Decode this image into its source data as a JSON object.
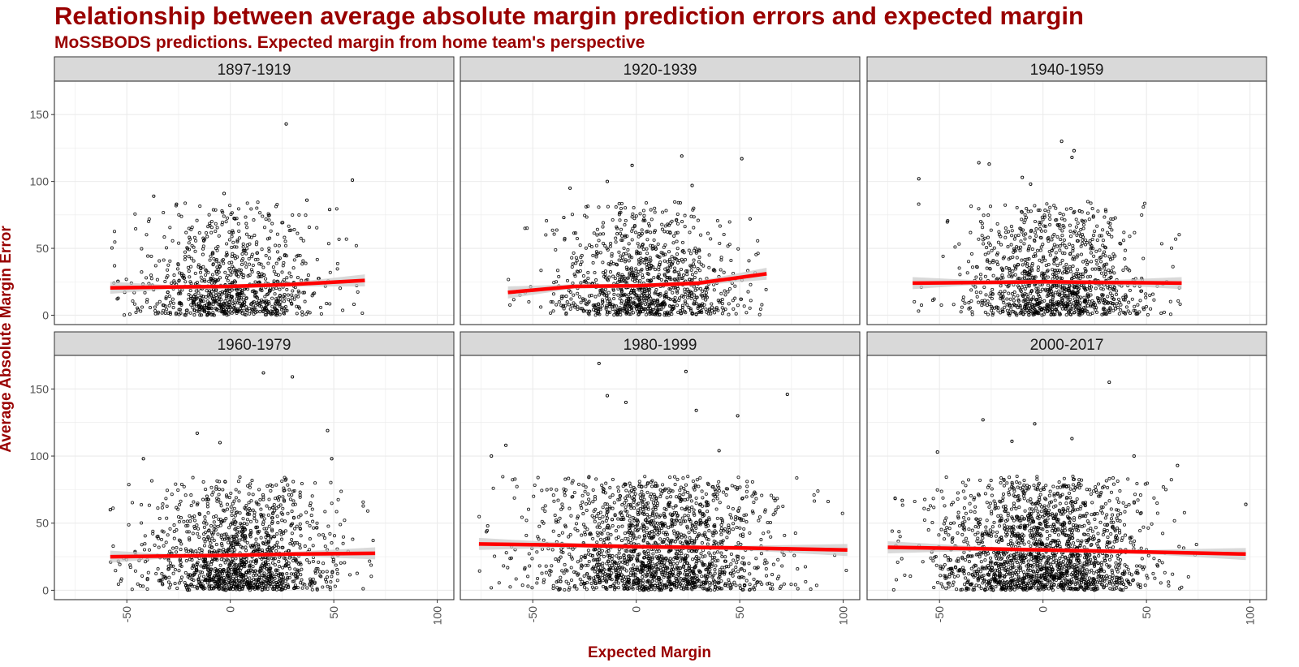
{
  "title": "Relationship between average absolute margin prediction errors and expected margin",
  "subtitle": "MoSSBODS predictions. Expected margin from home team's perspective",
  "colors": {
    "title": "#990000",
    "fit_line": "#ff0000",
    "ribbon": "#cccccc",
    "points": "#000000",
    "strip_bg": "#d9d9d9",
    "grid": "#ebebeb"
  },
  "chart_data": {
    "type": "scatter",
    "facet_layout": {
      "rows": 2,
      "cols": 3
    },
    "xlabel": "Expected Margin",
    "ylabel": "Average Absolute Margin Error",
    "xlim": [
      -85,
      108
    ],
    "ylim": [
      -7,
      175
    ],
    "x_ticks": [
      -50,
      0,
      50,
      100
    ],
    "y_ticks": [
      0,
      50,
      100,
      150
    ],
    "grid": true,
    "trend": "smoothed fit with confidence ribbon",
    "facets": [
      {
        "label": "1897-1919",
        "x_range": [
          -58,
          65
        ],
        "point_cloud": {
          "x_center": 0,
          "x_sd": 22,
          "y_median": 20,
          "n": 900
        },
        "outliers": [
          [
            27,
            143
          ],
          [
            59,
            101
          ],
          [
            -37,
            89
          ],
          [
            -3,
            91
          ],
          [
            -26,
            83
          ],
          [
            37,
            86
          ],
          [
            48,
            79
          ]
        ],
        "fit": [
          [
            -58,
            20.5
          ],
          [
            -30,
            21
          ],
          [
            0,
            21.5
          ],
          [
            30,
            23
          ],
          [
            65,
            26
          ]
        ]
      },
      {
        "label": "1920-1939",
        "x_range": [
          -62,
          63
        ],
        "point_cloud": {
          "x_center": 5,
          "x_sd": 22,
          "y_median": 21,
          "n": 1000
        },
        "outliers": [
          [
            22,
            119
          ],
          [
            51,
            117
          ],
          [
            -2,
            112
          ],
          [
            -14,
            100
          ],
          [
            27,
            97
          ],
          [
            -32,
            95
          ],
          [
            55,
            72
          ],
          [
            -35,
            73
          ]
        ],
        "fit": [
          [
            -62,
            17
          ],
          [
            -30,
            21.5
          ],
          [
            0,
            22
          ],
          [
            30,
            24
          ],
          [
            63,
            31
          ]
        ]
      },
      {
        "label": "1940-1959",
        "x_range": [
          -63,
          67
        ],
        "point_cloud": {
          "x_center": 5,
          "x_sd": 22,
          "y_median": 22,
          "n": 1100
        },
        "outliers": [
          [
            9,
            130
          ],
          [
            15,
            123
          ],
          [
            14,
            118
          ],
          [
            -31,
            114
          ],
          [
            -26,
            113
          ],
          [
            -60,
            102
          ],
          [
            -10,
            103
          ],
          [
            -6,
            98
          ]
        ],
        "fit": [
          [
            -63,
            24
          ],
          [
            -30,
            24.5
          ],
          [
            0,
            25
          ],
          [
            30,
            24.5
          ],
          [
            67,
            24
          ]
        ]
      },
      {
        "label": "1960-1979",
        "x_range": [
          -58,
          70
        ],
        "point_cloud": {
          "x_center": 5,
          "x_sd": 22,
          "y_median": 23,
          "n": 1300
        },
        "outliers": [
          [
            16,
            162
          ],
          [
            30,
            159
          ],
          [
            47,
            119
          ],
          [
            -16,
            117
          ],
          [
            -5,
            110
          ],
          [
            49,
            98
          ],
          [
            -42,
            98
          ],
          [
            -58,
            60
          ]
        ],
        "fit": [
          [
            -58,
            25
          ],
          [
            -30,
            25.5
          ],
          [
            0,
            26
          ],
          [
            30,
            27
          ],
          [
            70,
            27.5
          ]
        ]
      },
      {
        "label": "1980-1999",
        "x_range": [
          -76,
          102
        ],
        "point_cloud": {
          "x_center": 10,
          "x_sd": 28,
          "y_median": 28,
          "n": 1700
        },
        "outliers": [
          [
            -18,
            169
          ],
          [
            24,
            163
          ],
          [
            -14,
            145
          ],
          [
            73,
            146
          ],
          [
            -5,
            140
          ],
          [
            -63,
            108
          ],
          [
            29,
            134
          ],
          [
            49,
            130
          ],
          [
            -70,
            100
          ],
          [
            40,
            104
          ]
        ],
        "fit": [
          [
            -76,
            34.5
          ],
          [
            -30,
            33.5
          ],
          [
            0,
            32.5
          ],
          [
            50,
            31.5
          ],
          [
            102,
            30
          ]
        ]
      },
      {
        "label": "2000-2017",
        "x_range": [
          -75,
          98
        ],
        "point_cloud": {
          "x_center": 0,
          "x_sd": 25,
          "y_median": 26,
          "n": 1800
        },
        "outliers": [
          [
            32,
            155
          ],
          [
            -29,
            127
          ],
          [
            -4,
            124
          ],
          [
            -51,
            103
          ],
          [
            -68,
            67
          ],
          [
            65,
            93
          ],
          [
            98,
            64
          ],
          [
            -15,
            111
          ],
          [
            14,
            113
          ],
          [
            44,
            100
          ]
        ],
        "fit": [
          [
            -75,
            32
          ],
          [
            -30,
            31
          ],
          [
            0,
            30
          ],
          [
            50,
            28.5
          ],
          [
            98,
            27
          ]
        ]
      }
    ]
  }
}
